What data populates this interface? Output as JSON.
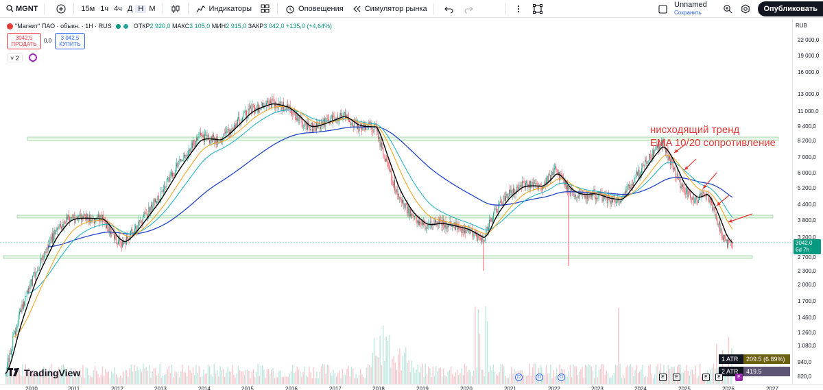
{
  "toolbar": {
    "symbol": "MGNT",
    "timeframes": [
      "15м",
      "1ч",
      "4ч",
      "Д",
      "Н",
      "М"
    ],
    "active_timeframe": "Н",
    "indicators_label": "Индикаторы",
    "alerts_label": "Оповещения",
    "replay_label": "Симулятор рынка",
    "layout_name": "Unnamed",
    "layout_status": "Сохранить",
    "publish_label": "Опубликовать"
  },
  "legend": {
    "title": "\"Магнит\" ПАО · обыкн. · 1Н · RUS",
    "open_label": "ОТКР",
    "open": "2 920,0",
    "high_label": "МАКС",
    "high": "3 105,0",
    "low_label": "МИН",
    "low": "2 915,0",
    "close_label": "ЗАКР",
    "close": "3 042,0",
    "change": "+135,0 (+4,64%)"
  },
  "trade": {
    "sell_price": "3042,5",
    "sell_label": "ПРОДАТЬ",
    "spread": "0,0",
    "buy_price": "3 042,5",
    "buy_label": "КУПИТЬ"
  },
  "indicators_count": "2",
  "annotation": {
    "line1": "нисходящий тренд",
    "line2": "EMA 10/20 сопротивление"
  },
  "price_scale": {
    "currency": "RUB",
    "labels": [
      "22 000,0",
      "19 000,0",
      "16 000,0",
      "13 000,0",
      "11 000,0",
      "9 400,0",
      "8 200,0",
      "7 000,0",
      "6 000,0",
      "5 200,0",
      "4 400,0",
      "3 800,0",
      "3 200,0",
      "2 700,0",
      "2 300,0",
      "2 000,0",
      "1 700,0",
      "1 460,0",
      "1 260,0",
      "1 080,0",
      "940,0",
      "820,0"
    ],
    "last_price": "3042,0",
    "countdown": "6d 7h"
  },
  "time_axis": [
    "2010",
    "2011",
    "2012",
    "2013",
    "2014",
    "2015",
    "2016",
    "2017",
    "2018",
    "2019",
    "2020",
    "2021",
    "2022",
    "2023",
    "2024",
    "2025",
    "2026",
    "2027"
  ],
  "atr": [
    {
      "label": "1 ATR",
      "value": "209.5 (6.89%)"
    },
    {
      "label": "2 ATR",
      "value": "419.5 (13.79%)"
    }
  ],
  "brand": "TradingView",
  "colors": {
    "up": "#089981",
    "down": "#f23645",
    "ema_fast": "#000000",
    "ema_slow": "#f5a623",
    "ema_mid": "#26b5c6",
    "ema_long": "#2145c8",
    "annotation": "#e53935"
  },
  "events": {
    "dividend": "D",
    "earnings": "E"
  }
}
